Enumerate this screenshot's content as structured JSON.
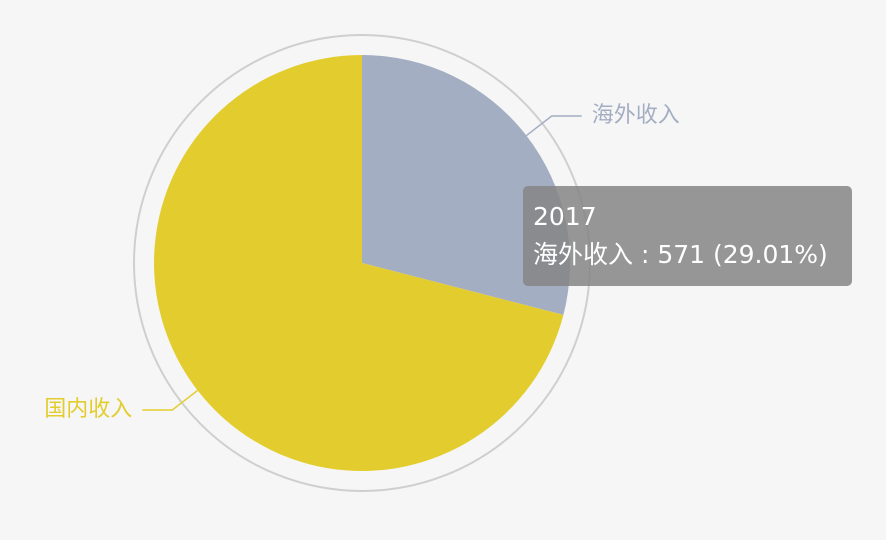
{
  "chart_data": {
    "type": "pie",
    "series_name": "2017",
    "slices": [
      {
        "name": "海外收入",
        "value": 571,
        "percent": "29.01%",
        "color": "#a4aec2"
      },
      {
        "name": "国内收入",
        "value": 1397,
        "color": "#e3cd2e"
      }
    ],
    "outer_ring": true,
    "start_angle_deg": 90,
    "direction": "clockwise"
  },
  "tooltip": {
    "title": "2017",
    "line": "海外收入 : 571 (29.01%)"
  },
  "colors": {
    "background": "#f6f6f6",
    "ring": "#cfcfcf",
    "overseas": "#a4aec2",
    "domestic": "#e3cd2e",
    "tooltip_bg": "rgba(133,133,133,0.85)"
  }
}
